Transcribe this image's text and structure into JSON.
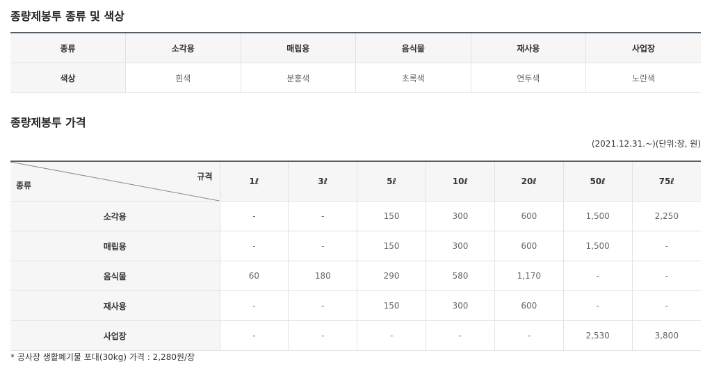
{
  "section1": {
    "title": "종량제봉투 종류 및 색상",
    "header_label": "종류",
    "row_label": "색상",
    "types": [
      "소각용",
      "매립용",
      "음식물",
      "재사용",
      "사업장"
    ],
    "colors": [
      "흰색",
      "분홍색",
      "초록색",
      "연두색",
      "노란색"
    ]
  },
  "section2": {
    "title": "종량제봉투 가격",
    "note": "(2021.12.31.~)(단위:장, 원)",
    "corner_top": "규격",
    "corner_bottom": "종류",
    "sizes": [
      "1ℓ",
      "3ℓ",
      "5ℓ",
      "10ℓ",
      "20ℓ",
      "50ℓ",
      "75ℓ"
    ],
    "rows": [
      {
        "type": "소각용",
        "prices": [
          "-",
          "-",
          "150",
          "300",
          "600",
          "1,500",
          "2,250"
        ]
      },
      {
        "type": "매립용",
        "prices": [
          "-",
          "-",
          "150",
          "300",
          "600",
          "1,500",
          "-"
        ]
      },
      {
        "type": "음식물",
        "prices": [
          "60",
          "180",
          "290",
          "580",
          "1,170",
          "-",
          "-"
        ]
      },
      {
        "type": "재사용",
        "prices": [
          "-",
          "-",
          "150",
          "300",
          "600",
          "-",
          "-"
        ]
      },
      {
        "type": "사업장",
        "prices": [
          "-",
          "-",
          "-",
          "-",
          "-",
          "2,530",
          "3,800"
        ]
      }
    ],
    "footnote": "* 공사장 생활폐기물 포대(30kg) 가격 : 2,280원/장"
  }
}
